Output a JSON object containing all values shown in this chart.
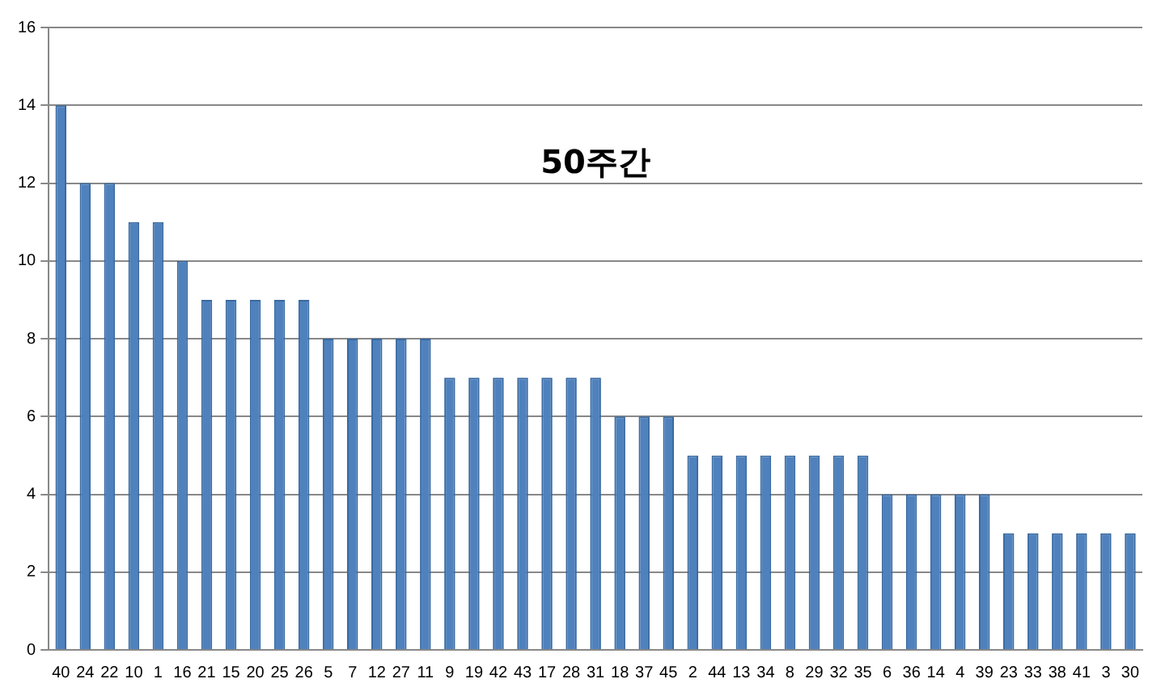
{
  "chart_data": {
    "type": "bar",
    "annotations": [
      "50주간"
    ],
    "categories": [
      "40",
      "24",
      "22",
      "10",
      "1",
      "16",
      "21",
      "15",
      "20",
      "25",
      "26",
      "5",
      "7",
      "12",
      "27",
      "11",
      "9",
      "19",
      "42",
      "43",
      "17",
      "28",
      "31",
      "18",
      "37",
      "45",
      "2",
      "44",
      "13",
      "34",
      "8",
      "29",
      "32",
      "35",
      "6",
      "36",
      "14",
      "4",
      "39",
      "23",
      "33",
      "38",
      "41",
      "3",
      "30"
    ],
    "values": [
      14,
      12,
      12,
      11,
      11,
      10,
      9,
      9,
      9,
      9,
      9,
      8,
      8,
      8,
      8,
      8,
      7,
      7,
      7,
      7,
      7,
      7,
      7,
      6,
      6,
      6,
      5,
      5,
      5,
      5,
      5,
      5,
      5,
      5,
      4,
      4,
      4,
      4,
      4,
      3,
      3,
      3,
      3,
      3,
      3
    ],
    "color": "#4f81bd",
    "ylim": [
      0,
      16
    ],
    "yticks": [
      0,
      2,
      4,
      6,
      8,
      10,
      12,
      14,
      16
    ],
    "grid": "y",
    "legend": false
  }
}
